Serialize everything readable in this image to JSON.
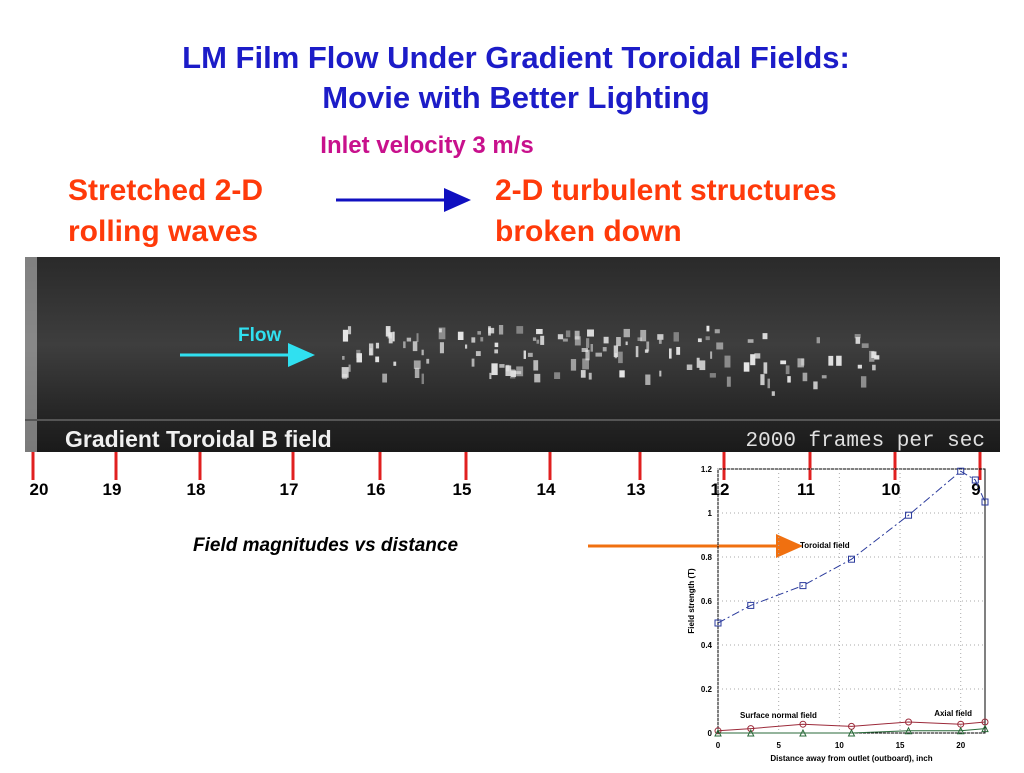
{
  "title": [
    "LM Film Flow Under Gradient Toroidal Fields:",
    "Movie with Better Lighting"
  ],
  "subtitle": "Inlet velocity 3 m/s",
  "left_label": [
    "Stretched 2-D",
    "rolling waves"
  ],
  "right_label": [
    "2-D turbulent structures",
    "broken down"
  ],
  "photo": {
    "flow_label": "Flow",
    "caption": "Gradient Toroidal B field",
    "frame_rate": "2000 frames per sec"
  },
  "ruler": [
    20,
    19,
    18,
    17,
    16,
    15,
    14,
    13,
    12,
    11,
    10,
    9
  ],
  "chart_caption": "Field magnitudes vs distance",
  "chart_data": {
    "type": "line",
    "xlabel": "Distance away from outlet (outboard), inch",
    "ylabel": "Field strength (T)",
    "xlim": [
      0,
      22
    ],
    "ylim": [
      0,
      1.2
    ],
    "xticks": [
      0,
      5,
      10,
      15,
      20
    ],
    "yticks": [
      0,
      0.2,
      0.4,
      0.6,
      0.8,
      1,
      1.2
    ],
    "grid": true,
    "series": [
      {
        "name": "Toroidal field",
        "color": "#2a3a9c",
        "marker": "square",
        "x": [
          0,
          2.7,
          7,
          11,
          15.7,
          20,
          21.2,
          22
        ],
        "values": [
          0.5,
          0.58,
          0.67,
          0.79,
          0.99,
          1.19,
          1.15,
          1.05
        ]
      },
      {
        "name": "Surface normal field",
        "color": "#9c2a3a",
        "marker": "circle",
        "x": [
          0,
          2.7,
          7,
          11,
          15.7,
          20,
          22
        ],
        "values": [
          0.01,
          0.02,
          0.04,
          0.03,
          0.05,
          0.04,
          0.05
        ]
      },
      {
        "name": "Axial field",
        "color": "#2a6a3a",
        "marker": "triangle",
        "x": [
          0,
          2.7,
          7,
          11,
          15.7,
          20,
          22
        ],
        "values": [
          0.0,
          0.0,
          0.0,
          0.0,
          0.01,
          0.01,
          0.02
        ]
      }
    ]
  }
}
